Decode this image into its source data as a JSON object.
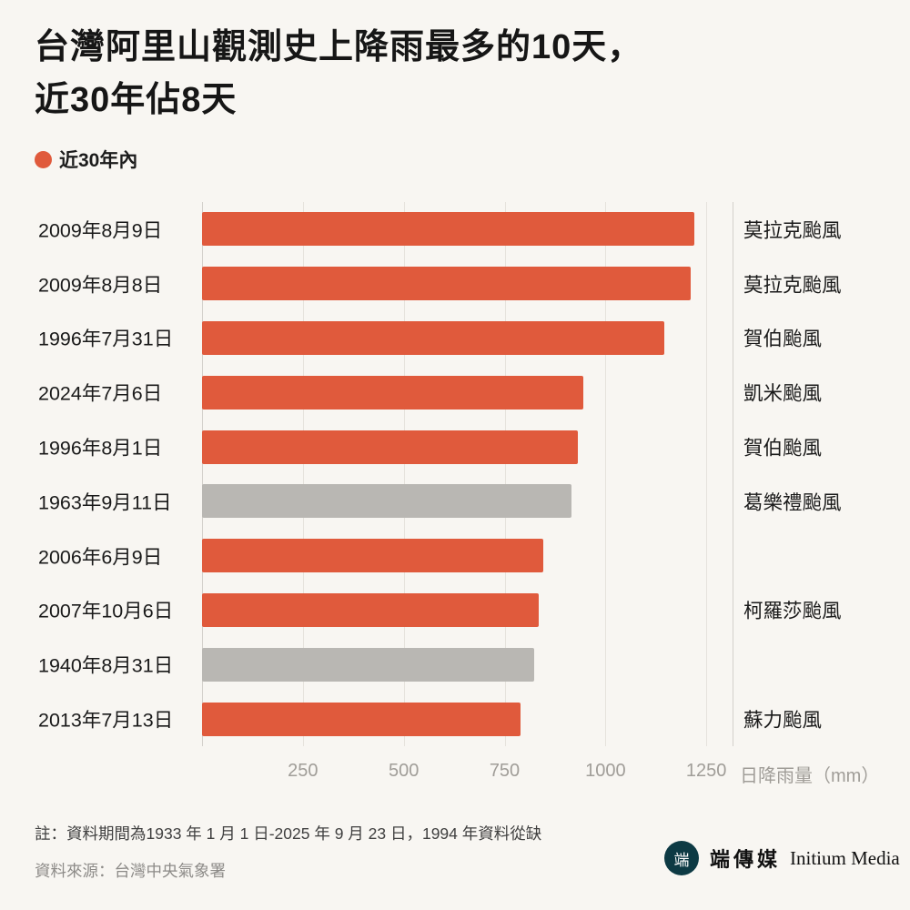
{
  "colors": {
    "accent": "#e05a3c",
    "gray_bar": "#b9b7b3",
    "background": "#f8f6f2"
  },
  "title": {
    "line1": "台灣阿里山觀測史上降雨最多的10天，",
    "line2": "近30年佔8天"
  },
  "legend": {
    "label": "近30年內",
    "color": "#e05a3c"
  },
  "chart_data": {
    "type": "bar",
    "orientation": "horizontal",
    "title": "台灣阿里山觀測史上降雨最多的10天，近30年佔8天",
    "xlabel": "日降雨量（mm）",
    "xlim": [
      0,
      1315
    ],
    "ticks": [
      250,
      500,
      750,
      1000,
      1250
    ],
    "grid": true,
    "legend_entries": [
      "近30年內"
    ],
    "rows": [
      {
        "date": "2009年8月9日",
        "typhoon": "莫拉克颱風",
        "value": 1220,
        "recent30": true
      },
      {
        "date": "2009年8月8日",
        "typhoon": "莫拉克颱風",
        "value": 1212,
        "recent30": true
      },
      {
        "date": "1996年7月31日",
        "typhoon": "賀伯颱風",
        "value": 1145,
        "recent30": true
      },
      {
        "date": "2024年7月6日",
        "typhoon": "凱米颱風",
        "value": 945,
        "recent30": true
      },
      {
        "date": "1996年8月1日",
        "typhoon": "賀伯颱風",
        "value": 932,
        "recent30": true
      },
      {
        "date": "1963年9月11日",
        "typhoon": "葛樂禮颱風",
        "value": 915,
        "recent30": false
      },
      {
        "date": "2006年6月9日",
        "typhoon": "",
        "value": 846,
        "recent30": true
      },
      {
        "date": "2007年10月6日",
        "typhoon": "柯羅莎颱風",
        "value": 834,
        "recent30": true
      },
      {
        "date": "1940年8月31日",
        "typhoon": "",
        "value": 824,
        "recent30": false
      },
      {
        "date": "2013年7月13日",
        "typhoon": "蘇力颱風",
        "value": 790,
        "recent30": true
      }
    ]
  },
  "footer": {
    "note": "註：資料期間為1933 年 1 月 1 日-2025 年 9 月 23 日，1994 年資料從缺",
    "source": "資料來源：台灣中央氣象署",
    "brand_zh": "端傳媒",
    "brand_en": "Initium Media",
    "logo_glyph": "端"
  },
  "icons": {
    "legend_dot": "circle-dot-icon",
    "brand_logo": "initium-circle-logo-icon"
  }
}
